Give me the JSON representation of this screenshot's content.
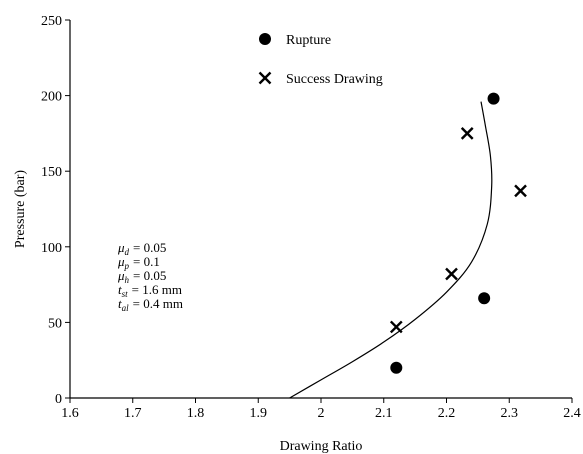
{
  "chart_data": {
    "type": "scatter",
    "xlabel": "Drawing Ratio",
    "ylabel": "Pressure (bar)",
    "xlim": [
      1.6,
      2.4
    ],
    "ylim": [
      0,
      250
    ],
    "xticks": [
      "1.6",
      "1.7",
      "1.8",
      "1.9",
      "2",
      "2.1",
      "2.2",
      "2.3",
      "2.4"
    ],
    "yticks": [
      "0",
      "50",
      "100",
      "150",
      "200",
      "250"
    ],
    "grid": false,
    "legend_position": "top-center",
    "series": [
      {
        "name": "Rupture",
        "marker": "filled-circle",
        "points": [
          {
            "x": 2.12,
            "y": 20
          },
          {
            "x": 2.26,
            "y": 66
          },
          {
            "x": 2.275,
            "y": 198
          }
        ]
      },
      {
        "name": "Success Drawing",
        "marker": "x",
        "points": [
          {
            "x": 2.12,
            "y": 47
          },
          {
            "x": 2.208,
            "y": 82
          },
          {
            "x": 2.233,
            "y": 175
          },
          {
            "x": 2.318,
            "y": 137
          }
        ]
      }
    ],
    "curve": {
      "points": [
        {
          "x": 1.95,
          "y": 0
        },
        {
          "x": 2.0,
          "y": 12
        },
        {
          "x": 2.05,
          "y": 24
        },
        {
          "x": 2.1,
          "y": 37
        },
        {
          "x": 2.15,
          "y": 52
        },
        {
          "x": 2.2,
          "y": 70
        },
        {
          "x": 2.24,
          "y": 90
        },
        {
          "x": 2.265,
          "y": 115
        },
        {
          "x": 2.272,
          "y": 140
        },
        {
          "x": 2.27,
          "y": 160
        },
        {
          "x": 2.262,
          "y": 180
        },
        {
          "x": 2.255,
          "y": 196
        }
      ]
    },
    "annotations": [
      {
        "symbol": "μ",
        "sub": "d",
        "value": "= 0.05"
      },
      {
        "symbol": "μ",
        "sub": "p",
        "value": "= 0.1"
      },
      {
        "symbol": "μ",
        "sub": "h",
        "value": "= 0.05"
      },
      {
        "symbol": "t",
        "sub": "st",
        "value": "= 1.6  mm"
      },
      {
        "symbol": "t",
        "sub": "al",
        "value": "= 0.4 mm"
      }
    ]
  }
}
